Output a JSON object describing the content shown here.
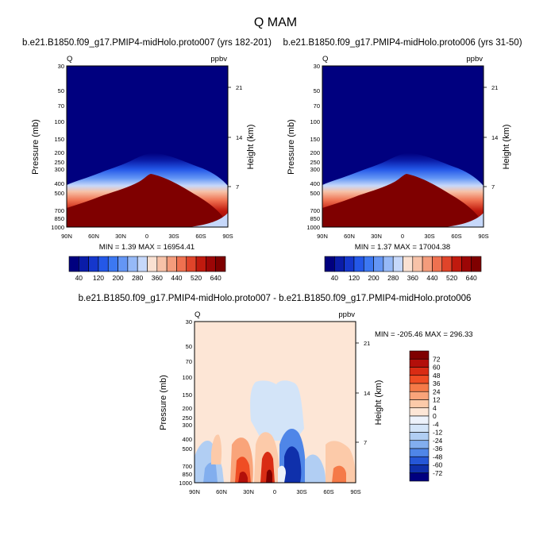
{
  "chart_data": {
    "type": "contour",
    "title": "Q MAM",
    "panels": [
      {
        "id": "top-left",
        "title": "b.e21.B1850.f09_g17.PMIP4-midHolo.proto007 (yrs 182-201)",
        "corner_left": "Q",
        "corner_right": "ppbv",
        "ylabel": "Pressure (mb)",
        "ylabel_right": "Height (km)",
        "x_ticks": [
          "90N",
          "60N",
          "30N",
          "0",
          "30S",
          "60S",
          "90S"
        ],
        "p_ticks": [
          "30",
          "50",
          "70",
          "100",
          "150",
          "200",
          "250",
          "300",
          "400",
          "500",
          "700",
          "850",
          "1000"
        ],
        "h_ticks": [
          "21",
          "14",
          "7"
        ],
        "stats": "MIN =   1.39  MAX = 16954.41"
      },
      {
        "id": "top-right",
        "title": "b.e21.B1850.f09_g17.PMIP4-midHolo.proto006 (yrs 31-50)",
        "corner_left": "Q",
        "corner_right": "ppbv",
        "ylabel": "Pressure (mb)",
        "ylabel_right": "Height (km)",
        "x_ticks": [
          "90N",
          "60N",
          "30N",
          "0",
          "30S",
          "60S",
          "90S"
        ],
        "p_ticks": [
          "30",
          "50",
          "70",
          "100",
          "150",
          "200",
          "250",
          "300",
          "400",
          "500",
          "700",
          "850",
          "1000"
        ],
        "h_ticks": [
          "21",
          "14",
          "7"
        ],
        "stats": "MIN =   1.37  MAX = 17004.38"
      },
      {
        "id": "bottom",
        "title": "b.e21.B1850.f09_g17.PMIP4-midHolo.proto007 - b.e21.B1850.f09_g17.PMIP4-midHolo.proto006",
        "corner_left": "Q",
        "corner_right": "ppbv",
        "ylabel": "Pressure (mb)",
        "ylabel_right": "Height (km)",
        "x_ticks": [
          "90N",
          "60N",
          "30N",
          "0",
          "30S",
          "60S",
          "90S"
        ],
        "p_ticks": [
          "30",
          "50",
          "70",
          "100",
          "150",
          "200",
          "250",
          "300",
          "400",
          "500",
          "700",
          "850",
          "1000"
        ],
        "h_ticks": [
          "21",
          "14",
          "7"
        ],
        "stats": "MIN = -205.46  MAX = 296.33"
      }
    ],
    "colorbar_abs": {
      "labels": [
        "40",
        "120",
        "200",
        "280",
        "360",
        "440",
        "520",
        "640"
      ],
      "colors": [
        "#00007f",
        "#0a1ca8",
        "#1537cc",
        "#2458e8",
        "#3c78f2",
        "#6496f5",
        "#96b9f7",
        "#c6d8fa",
        "#fae1d2",
        "#f7c2a8",
        "#f49c7c",
        "#ef7150",
        "#e0442a",
        "#c01a0e",
        "#9c0606",
        "#7f0000"
      ]
    },
    "colorbar_diff": {
      "labels": [
        "72",
        "60",
        "48",
        "36",
        "24",
        "12",
        "4",
        "0",
        "-4",
        "-12",
        "-24",
        "-36",
        "-48",
        "-60",
        "-72"
      ],
      "colors": [
        "#7f0000",
        "#b30f0a",
        "#d92c14",
        "#ef4d24",
        "#f57a48",
        "#f9a47a",
        "#fccaa9",
        "#fde6d6",
        "#edf2fb",
        "#d3e4f8",
        "#b1cef3",
        "#82aeee",
        "#4f86e8",
        "#2557d7",
        "#0f30ab",
        "#00007f"
      ]
    }
  }
}
